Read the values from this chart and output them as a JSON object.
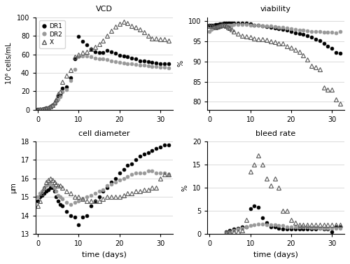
{
  "vcd": {
    "DR1_x": [
      0,
      0.5,
      1,
      1.5,
      2,
      2.5,
      3,
      3.5,
      4,
      4.5,
      5,
      5.5,
      6,
      7,
      8,
      9,
      10,
      11,
      12,
      13,
      14,
      15,
      16,
      17,
      18,
      19,
      20,
      21,
      22,
      23,
      24,
      25,
      26,
      27,
      28,
      29,
      30,
      31,
      32
    ],
    "DR1_y": [
      0.3,
      0.5,
      0.8,
      1.2,
      1.8,
      2.5,
      3.5,
      5.0,
      7.0,
      10.0,
      15.0,
      16.0,
      23.0,
      25.0,
      35.0,
      55.0,
      79.0,
      74.0,
      70.0,
      66.0,
      63.0,
      62.0,
      62.0,
      64.0,
      63.0,
      61.0,
      59.0,
      58.0,
      57.0,
      56.0,
      55.0,
      53.0,
      52.5,
      52.0,
      51.0,
      50.5,
      50.0,
      50.0,
      49.5
    ],
    "DR2_x": [
      0,
      0.5,
      1,
      1.5,
      2,
      2.5,
      3,
      3.5,
      4,
      4.5,
      5,
      5.5,
      6,
      7,
      8,
      9,
      10,
      11,
      12,
      13,
      14,
      15,
      16,
      17,
      18,
      19,
      20,
      21,
      22,
      23,
      24,
      25,
      26,
      27,
      28,
      29,
      30,
      31,
      32
    ],
    "DR2_y": [
      0.2,
      0.4,
      0.7,
      1.0,
      1.5,
      2.2,
      3.2,
      4.5,
      6.5,
      9.0,
      11.5,
      14.5,
      19.5,
      22.0,
      32.0,
      44.0,
      57.0,
      58.0,
      58.0,
      57.0,
      56.0,
      55.0,
      55.0,
      54.0,
      53.0,
      52.0,
      51.0,
      50.5,
      50.0,
      49.5,
      49.0,
      48.5,
      48.0,
      47.5,
      47.0,
      46.5,
      46.0,
      46.0,
      45.5
    ],
    "X_x": [
      0,
      0.5,
      1,
      1.5,
      2,
      2.5,
      3,
      3.5,
      4,
      4.5,
      5,
      5.5,
      6,
      7,
      8,
      9,
      10,
      11,
      12,
      13,
      14,
      15,
      16,
      17,
      18,
      19,
      20,
      21,
      22,
      23,
      24,
      25,
      26,
      27,
      28,
      29,
      30,
      31,
      32
    ],
    "X_y": [
      0.2,
      0.4,
      0.7,
      1.0,
      1.5,
      2.3,
      3.4,
      5.5,
      8.5,
      11.0,
      17.0,
      19.5,
      30.0,
      37.0,
      43.0,
      57.0,
      60.0,
      62.0,
      63.0,
      66.0,
      68.0,
      71.0,
      75.0,
      80.0,
      85.0,
      90.0,
      93.0,
      95.0,
      94.0,
      91.0,
      89.0,
      87.0,
      84.0,
      80.0,
      77.0,
      77.0,
      76.0,
      76.0,
      75.0
    ],
    "ylim": [
      0,
      100
    ],
    "yticks": [
      0,
      20,
      40,
      60,
      80,
      100
    ],
    "ylabel": "10⁶ cells/mL",
    "title": "VCD"
  },
  "viability": {
    "DR1_x": [
      0,
      0.5,
      1,
      1.5,
      2,
      2.5,
      3,
      3.5,
      4,
      4.5,
      5,
      5.5,
      6,
      7,
      8,
      9,
      10,
      11,
      12,
      13,
      14,
      15,
      16,
      17,
      18,
      19,
      20,
      21,
      22,
      23,
      24,
      25,
      26,
      27,
      28,
      29,
      30,
      31,
      32
    ],
    "DR1_y": [
      99.0,
      99.0,
      99.0,
      99.2,
      99.2,
      99.3,
      99.3,
      99.5,
      99.5,
      99.5,
      99.5,
      99.5,
      99.5,
      99.5,
      99.5,
      99.5,
      99.3,
      99.0,
      99.0,
      98.8,
      98.7,
      98.5,
      98.3,
      98.2,
      98.0,
      97.8,
      97.5,
      97.2,
      97.0,
      96.8,
      96.5,
      96.0,
      95.5,
      95.2,
      94.5,
      93.8,
      93.2,
      92.2,
      92.0
    ],
    "DR2_x": [
      0,
      0.5,
      1,
      1.5,
      2,
      2.5,
      3,
      3.5,
      4,
      4.5,
      5,
      5.5,
      6,
      7,
      8,
      9,
      10,
      11,
      12,
      13,
      14,
      15,
      16,
      17,
      18,
      19,
      20,
      21,
      22,
      23,
      24,
      25,
      26,
      27,
      28,
      29,
      30,
      31,
      32
    ],
    "DR2_y": [
      97.5,
      98.0,
      98.3,
      98.5,
      98.7,
      98.8,
      99.0,
      99.0,
      99.0,
      99.0,
      99.0,
      99.0,
      99.2,
      99.2,
      99.2,
      99.2,
      99.0,
      99.0,
      99.0,
      98.8,
      98.8,
      98.8,
      98.7,
      98.5,
      98.5,
      98.3,
      98.2,
      98.0,
      97.8,
      97.8,
      97.7,
      97.5,
      97.5,
      97.5,
      97.3,
      97.3,
      97.3,
      97.2,
      97.5
    ],
    "X_x": [
      0,
      0.5,
      1,
      1.5,
      2,
      2.5,
      3,
      3.5,
      4,
      4.5,
      5,
      5.5,
      6,
      7,
      8,
      9,
      10,
      11,
      12,
      13,
      14,
      15,
      16,
      17,
      18,
      19,
      20,
      21,
      22,
      23,
      24,
      25,
      26,
      27,
      28,
      29,
      30,
      31,
      32
    ],
    "X_y": [
      98.8,
      98.8,
      98.8,
      98.5,
      98.7,
      98.8,
      99.0,
      99.0,
      98.8,
      98.5,
      98.3,
      98.0,
      97.5,
      97.0,
      96.5,
      96.2,
      96.0,
      95.8,
      95.5,
      95.5,
      95.3,
      95.0,
      94.8,
      94.5,
      94.5,
      93.8,
      93.5,
      93.0,
      92.5,
      91.5,
      90.5,
      89.0,
      88.5,
      88.0,
      83.5,
      83.0,
      83.0,
      80.5,
      79.5
    ],
    "ylim": [
      78,
      101
    ],
    "yticks": [
      80,
      85,
      90,
      95,
      100
    ],
    "ylabel": "%",
    "title": "viability"
  },
  "cell_diameter": {
    "DR1_x": [
      0,
      0.5,
      1,
      1.5,
      2,
      2.5,
      3,
      3.5,
      4,
      4.5,
      5,
      5.5,
      6,
      7,
      8,
      9,
      10,
      11,
      12,
      13,
      14,
      15,
      16,
      17,
      18,
      19,
      20,
      21,
      22,
      23,
      24,
      25,
      26,
      27,
      28,
      29,
      30,
      31,
      32
    ],
    "DR1_y": [
      14.8,
      15.0,
      15.1,
      15.2,
      15.3,
      15.4,
      15.5,
      15.5,
      15.3,
      15.0,
      14.8,
      14.6,
      14.5,
      14.2,
      14.0,
      13.9,
      13.5,
      13.9,
      14.0,
      14.5,
      14.8,
      15.0,
      15.3,
      15.5,
      15.8,
      16.0,
      16.3,
      16.5,
      16.7,
      16.8,
      17.0,
      17.2,
      17.3,
      17.4,
      17.5,
      17.6,
      17.7,
      17.8,
      17.8
    ],
    "DR2_x": [
      0,
      0.5,
      1,
      1.5,
      2,
      2.5,
      3,
      3.5,
      4,
      4.5,
      5,
      5.5,
      6,
      7,
      8,
      9,
      10,
      11,
      12,
      13,
      14,
      15,
      16,
      17,
      18,
      19,
      20,
      21,
      22,
      23,
      24,
      25,
      26,
      27,
      28,
      29,
      30,
      31,
      32
    ],
    "DR2_y": [
      15.0,
      15.2,
      15.3,
      15.5,
      15.6,
      15.7,
      15.7,
      15.6,
      15.5,
      15.3,
      15.1,
      15.0,
      14.9,
      14.7,
      14.6,
      14.7,
      14.8,
      14.9,
      15.0,
      15.1,
      15.2,
      15.3,
      15.4,
      15.6,
      15.7,
      15.8,
      15.9,
      16.0,
      16.1,
      16.2,
      16.3,
      16.3,
      16.3,
      16.4,
      16.4,
      16.3,
      16.3,
      16.3,
      16.2
    ],
    "X_x": [
      0,
      0.5,
      1,
      1.5,
      2,
      2.5,
      3,
      3.5,
      4,
      4.5,
      5,
      5.5,
      6,
      7,
      8,
      9,
      10,
      11,
      12,
      13,
      14,
      15,
      16,
      17,
      18,
      19,
      20,
      21,
      22,
      23,
      24,
      25,
      26,
      27,
      28,
      29,
      30,
      31,
      32
    ],
    "X_y": [
      14.5,
      14.8,
      15.2,
      15.5,
      15.8,
      15.9,
      16.0,
      15.9,
      15.8,
      15.7,
      15.6,
      15.6,
      15.5,
      15.3,
      15.2,
      15.0,
      15.0,
      14.9,
      14.8,
      14.8,
      14.8,
      14.8,
      14.9,
      15.0,
      15.0,
      15.0,
      15.0,
      15.1,
      15.2,
      15.2,
      15.3,
      15.3,
      15.4,
      15.4,
      15.5,
      15.5,
      16.0,
      16.2,
      16.2
    ],
    "ylim": [
      13,
      18
    ],
    "yticks": [
      13,
      14,
      15,
      16,
      17,
      18
    ],
    "ylabel": "µm",
    "title": "cell diameter"
  },
  "bleed_rate": {
    "DR1_x": [
      4,
      5,
      6,
      7,
      8,
      9,
      10,
      11,
      12,
      13,
      14,
      15,
      16,
      17,
      18,
      19,
      20,
      21,
      22,
      23,
      24,
      25,
      26,
      27,
      28,
      29,
      30,
      31,
      32
    ],
    "DR1_y": [
      0.5,
      0.8,
      1.0,
      1.2,
      1.5,
      1.5,
      5.5,
      6.0,
      5.8,
      3.5,
      2.5,
      1.5,
      1.5,
      1.2,
      1.0,
      1.0,
      1.0,
      1.0,
      1.0,
      1.0,
      1.0,
      1.0,
      1.0,
      1.2,
      1.0,
      1.0,
      0.5,
      1.5,
      1.5
    ],
    "DR2_x": [
      4,
      5,
      6,
      7,
      8,
      9,
      10,
      11,
      12,
      13,
      14,
      15,
      16,
      17,
      18,
      19,
      20,
      21,
      22,
      23,
      24,
      25,
      26,
      27,
      28,
      29,
      30,
      31,
      32
    ],
    "DR2_y": [
      0.3,
      0.5,
      0.7,
      1.0,
      1.2,
      1.5,
      1.8,
      2.0,
      2.2,
      2.2,
      2.0,
      2.0,
      2.0,
      1.8,
      1.8,
      1.5,
      1.5,
      1.5,
      1.5,
      1.5,
      1.5,
      1.3,
      1.3,
      1.2,
      1.2,
      1.2,
      1.2,
      1.2,
      1.2
    ],
    "X_x": [
      4,
      5,
      6,
      7,
      8,
      9,
      10,
      11,
      12,
      13,
      14,
      15,
      16,
      17,
      18,
      19,
      20,
      21,
      22,
      23,
      24,
      25,
      26,
      27,
      28,
      29,
      30,
      31,
      32
    ],
    "X_y": [
      0.3,
      0.5,
      0.5,
      0.5,
      0.8,
      3.0,
      13.5,
      15.0,
      17.0,
      15.0,
      12.0,
      10.5,
      12.0,
      10.0,
      5.0,
      5.0,
      3.0,
      2.5,
      2.0,
      2.0,
      2.0,
      2.0,
      2.0,
      2.0,
      2.0,
      2.0,
      2.0,
      2.0,
      2.0
    ],
    "ylim": [
      0,
      20
    ],
    "yticks": [
      0,
      5,
      10,
      15,
      20
    ],
    "ylabel": "%",
    "title": "bleed rate"
  },
  "xlabel": "time (days)",
  "xticks": [
    0,
    10,
    20,
    30
  ],
  "xlim": [
    -0.5,
    33
  ],
  "DR1_color": "#000000",
  "DR2_color": "#999999",
  "X_color": "#555555",
  "marker_size": 3.5,
  "triangle_size": 4.5
}
